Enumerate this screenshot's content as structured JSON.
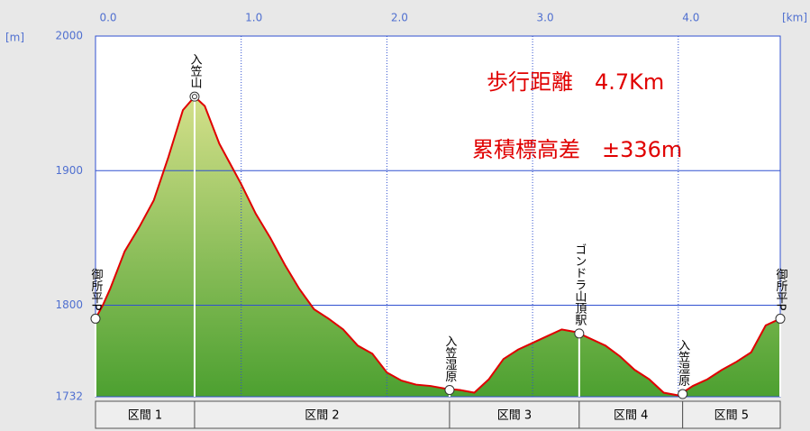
{
  "chart_data": {
    "type": "area",
    "x_label": "[km]",
    "y_label": "[m]",
    "annotations": [
      "歩行距離　4.7Km",
      "累積標高差　±336m"
    ],
    "x": [
      0,
      0.05,
      0.1,
      0.2,
      0.3,
      0.4,
      0.5,
      0.6,
      0.68,
      0.75,
      0.85,
      1.0,
      1.1,
      1.2,
      1.3,
      1.4,
      1.5,
      1.6,
      1.7,
      1.8,
      1.9,
      2.0,
      2.1,
      2.2,
      2.3,
      2.4,
      2.5,
      2.6,
      2.7,
      2.8,
      2.9,
      3.0,
      3.1,
      3.2,
      3.3,
      3.4,
      3.5,
      3.6,
      3.7,
      3.8,
      3.9,
      4.0,
      4.1,
      4.2,
      4.3,
      4.4,
      4.5,
      4.6,
      4.7
    ],
    "values": [
      1790,
      1800,
      1812,
      1840,
      1858,
      1878,
      1910,
      1945,
      1955,
      1948,
      1920,
      1890,
      1868,
      1850,
      1830,
      1812,
      1797,
      1790,
      1782,
      1770,
      1764,
      1750,
      1744,
      1741,
      1740,
      1738,
      1737,
      1735,
      1745,
      1760,
      1767,
      1772,
      1777,
      1782,
      1780,
      1775,
      1770,
      1762,
      1752,
      1745,
      1735,
      1733,
      1740,
      1745,
      1752,
      1758,
      1765,
      1785,
      1790
    ],
    "color": "#e00000",
    "xlim": [
      0,
      4.7
    ],
    "ylim": [
      1732,
      2000
    ],
    "xticks": [
      {
        "value": 0,
        "label": "0.0"
      },
      {
        "value": 1,
        "label": "1.0"
      },
      {
        "value": 2,
        "label": "2.0"
      },
      {
        "value": 3,
        "label": "3.0"
      },
      {
        "value": 4,
        "label": "4.0"
      }
    ],
    "yticks": [
      1732,
      1800,
      1900,
      2000
    ],
    "grid": true,
    "waypoints": [
      {
        "name": "御所平P",
        "x": 0,
        "value": 1790
      },
      {
        "name": "入笠山",
        "x": 0.68,
        "value": 1955
      },
      {
        "name": "入笠湿原",
        "x": 2.43,
        "value": 1737
      },
      {
        "name": "ゴンドラ山頂駅",
        "x": 3.32,
        "value": 1779
      },
      {
        "name": "入笠湿原",
        "x": 4.03,
        "value": 1734
      },
      {
        "name": "御所平P",
        "x": 4.7,
        "value": 1790
      }
    ],
    "sections": [
      "区間 1",
      "区間 2",
      "区間 3",
      "区間 4",
      "区間 5"
    ]
  }
}
